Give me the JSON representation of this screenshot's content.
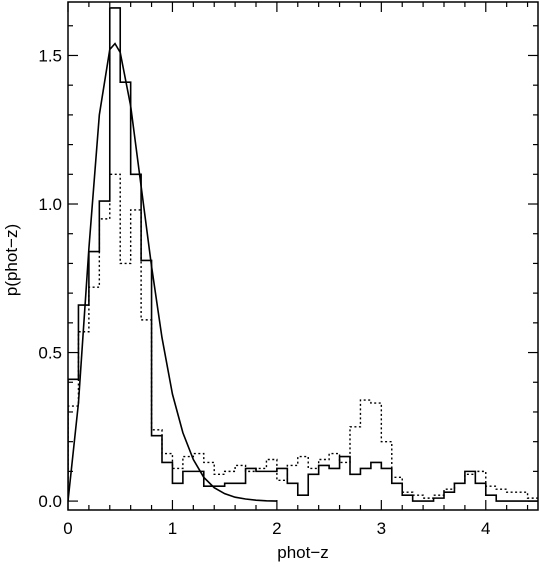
{
  "chart_data": {
    "type": "line",
    "title": "",
    "xlabel": "phot−z",
    "ylabel": "p(phot−z)",
    "xlim": [
      0,
      4.5
    ],
    "ylim": [
      -0.03,
      1.68
    ],
    "grid": false,
    "legend": "none",
    "x_ticks": [
      {
        "value": 0,
        "label": "0"
      },
      {
        "value": 1,
        "label": "1"
      },
      {
        "value": 2,
        "label": "2"
      },
      {
        "value": 3,
        "label": "3"
      },
      {
        "value": 4,
        "label": "4"
      }
    ],
    "y_ticks": [
      {
        "value": 0.0,
        "label": "0.0"
      },
      {
        "value": 0.5,
        "label": "0.5"
      },
      {
        "value": 1.0,
        "label": "1.0"
      },
      {
        "value": 1.5,
        "label": "1.5"
      }
    ],
    "bin_width": 0.1,
    "series": [
      {
        "style": "solid-step",
        "bin_starts": [
          0.0,
          0.1,
          0.2,
          0.3,
          0.4,
          0.5,
          0.6,
          0.7,
          0.8,
          0.9,
          1.0,
          1.1,
          1.2,
          1.3,
          1.4,
          1.5,
          1.6,
          1.7,
          1.8,
          1.9,
          2.0,
          2.1,
          2.2,
          2.3,
          2.4,
          2.5,
          2.6,
          2.7,
          2.8,
          2.9,
          3.0,
          3.1,
          3.2,
          3.3,
          3.4,
          3.5,
          3.6,
          3.7,
          3.8,
          3.9,
          4.0,
          4.1,
          4.2,
          4.3,
          4.4
        ],
        "values": [
          0.41,
          0.66,
          0.84,
          1.01,
          1.66,
          1.41,
          1.1,
          0.81,
          0.22,
          0.13,
          0.06,
          0.1,
          0.1,
          0.05,
          0.05,
          0.06,
          0.06,
          0.11,
          0.1,
          0.1,
          0.11,
          0.06,
          0.02,
          0.09,
          0.12,
          0.11,
          0.15,
          0.09,
          0.11,
          0.13,
          0.11,
          0.06,
          0.02,
          0.0,
          0.0,
          0.01,
          0.03,
          0.06,
          0.1,
          0.06,
          0.02,
          0.0,
          0.0,
          0.0,
          0.0
        ]
      },
      {
        "style": "dotted-step",
        "bin_starts": [
          0.0,
          0.1,
          0.2,
          0.3,
          0.4,
          0.5,
          0.6,
          0.7,
          0.8,
          0.9,
          1.0,
          1.1,
          1.2,
          1.3,
          1.4,
          1.5,
          1.6,
          1.7,
          1.8,
          1.9,
          2.0,
          2.1,
          2.2,
          2.3,
          2.4,
          2.5,
          2.6,
          2.7,
          2.8,
          2.9,
          3.0,
          3.1,
          3.2,
          3.3,
          3.4,
          3.5,
          3.6,
          3.7,
          3.8,
          3.9,
          4.0,
          4.1,
          4.2,
          4.3,
          4.4
        ],
        "values": [
          0.32,
          0.57,
          0.72,
          0.95,
          1.1,
          0.8,
          0.98,
          0.61,
          0.24,
          0.16,
          0.11,
          0.15,
          0.16,
          0.13,
          0.09,
          0.1,
          0.12,
          0.1,
          0.11,
          0.14,
          0.07,
          0.12,
          0.15,
          0.11,
          0.14,
          0.16,
          0.13,
          0.25,
          0.34,
          0.33,
          0.2,
          0.08,
          0.03,
          0.02,
          0.01,
          0.02,
          0.04,
          0.06,
          0.09,
          0.1,
          0.05,
          0.04,
          0.03,
          0.03,
          0.01
        ]
      },
      {
        "style": "smooth-curve",
        "x": [
          0,
          0.1,
          0.2,
          0.3,
          0.4,
          0.45,
          0.5,
          0.6,
          0.7,
          0.8,
          0.9,
          1.0,
          1.1,
          1.2,
          1.3,
          1.4,
          1.5,
          1.6,
          1.7,
          1.8,
          1.9,
          2.0
        ],
        "values": [
          0.0,
          0.33,
          0.85,
          1.3,
          1.52,
          1.54,
          1.51,
          1.33,
          1.06,
          0.79,
          0.55,
          0.36,
          0.23,
          0.14,
          0.08,
          0.045,
          0.025,
          0.013,
          0.007,
          0.003,
          0.001,
          0.0
        ]
      }
    ]
  }
}
